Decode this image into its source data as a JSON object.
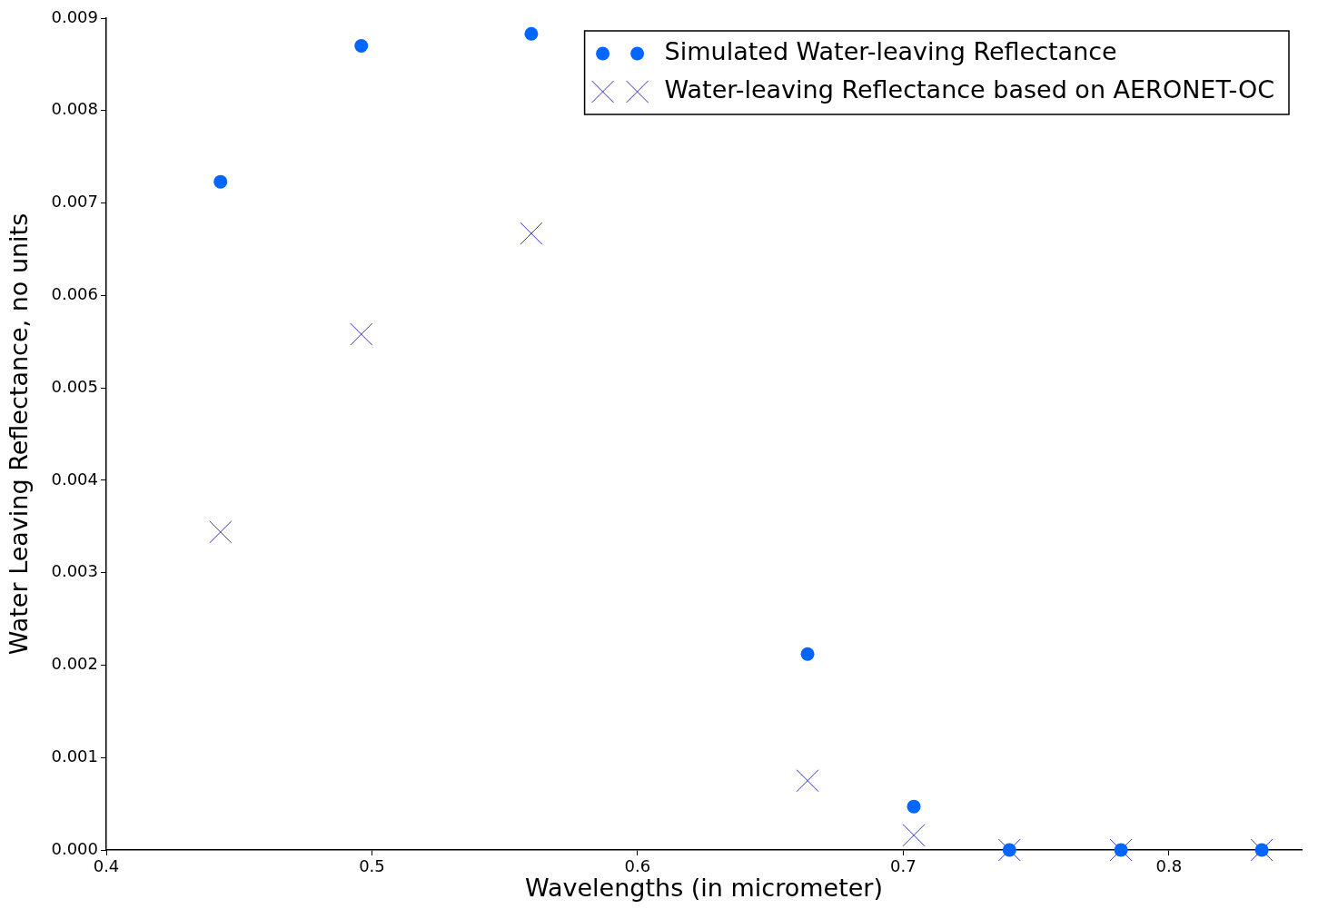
{
  "chart_data": {
    "type": "scatter",
    "xlabel": "Wavelengths (in micrometer)",
    "ylabel": "Water Leaving Reflectance, no units",
    "xlim": [
      0.4,
      0.85
    ],
    "xticks": [
      0.4,
      0.5,
      0.6,
      0.7,
      0.8
    ],
    "ylim": [
      0,
      0.009
    ],
    "yticks": [
      {
        "value": 0,
        "label": "0.000"
      },
      {
        "value": 0.001,
        "label": "0.001"
      },
      {
        "value": 0.002,
        "label": "0.002"
      },
      {
        "value": 0.003,
        "label": "0.003"
      },
      {
        "value": 0.004,
        "label": "0.004"
      },
      {
        "value": 0.005,
        "label": "0.005"
      },
      {
        "value": 0.006,
        "label": "0.006"
      },
      {
        "value": 0.007,
        "label": "0.007"
      },
      {
        "value": 0.008,
        "label": "0.008"
      },
      {
        "value": 0.009,
        "label": "0.009"
      }
    ],
    "x": [
      0.443,
      0.496,
      0.56,
      0.664,
      0.704,
      0.74,
      0.782,
      0.835
    ],
    "series": [
      {
        "name": "Simulated Water-leaving Reflectance",
        "color": "#0066ff",
        "marker": "circle",
        "values": [
          0.00723,
          0.0087,
          0.00883,
          0.00212,
          0.00047,
          0,
          0,
          0
        ]
      },
      {
        "name": "Water-leaving Reflectance based on AERONET-OC",
        "color": "#3333cc",
        "marker": "cross",
        "values": [
          0.00344,
          0.00558,
          0.00667,
          0.00075,
          0.00016,
          0,
          0,
          0
        ]
      }
    ],
    "legend": "top right",
    "grid": false
  }
}
